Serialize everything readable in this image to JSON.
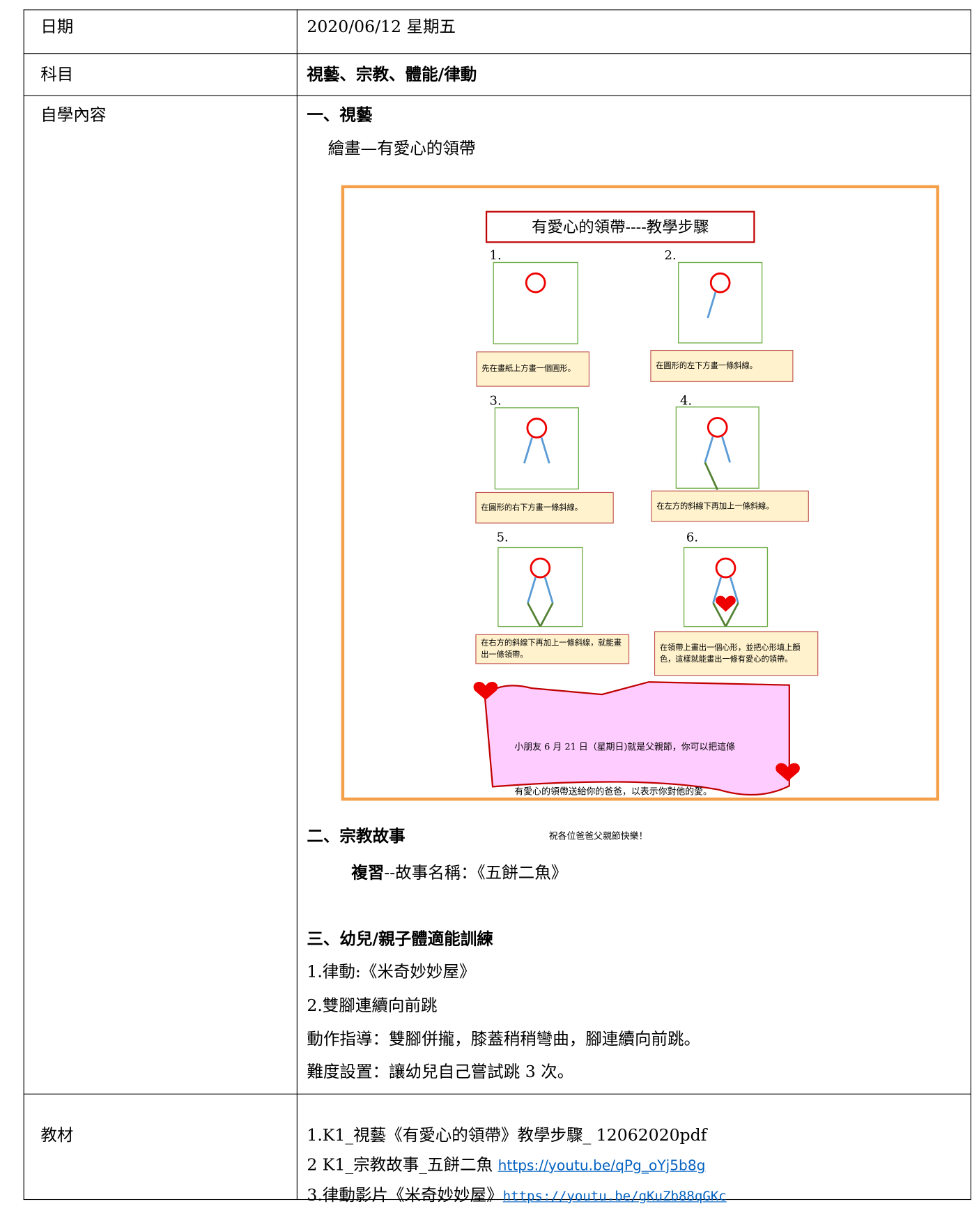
{
  "table": {
    "rows": [
      {
        "label": "日期",
        "content": "2020/06/12 星期五"
      },
      {
        "label": "科目",
        "content": "視藝、宗教、體能/律動"
      },
      {
        "label": "自學內容",
        "sections": [
          {
            "heading": "一、視藝",
            "subtitle": "繪畫—有愛心的領帶",
            "figure": {
              "title": "有愛心的領帶----教學步驟",
              "steps": [
                {
                  "number": "1.",
                  "caption": "先在畫紙上方畫一個圓形。"
                },
                {
                  "number": "2.",
                  "caption": "在圓形的左下方畫一條斜線。"
                },
                {
                  "number": "3.",
                  "caption": "在圓形的右下方畫一條斜線。"
                },
                {
                  "number": "4.",
                  "caption": "在左方的斜線下再加上一條斜線。"
                },
                {
                  "number": "5.",
                  "caption": "在右方的斜線下再加上一條斜線，就能畫出一條領帶。"
                },
                {
                  "number": "6.",
                  "caption": "在領帶上畫出一個心形，並把心形填上顏色，這樣就能畫出一條有愛心的領帶。"
                }
              ],
              "banner": [
                "小朋友 6 月 21 日（星期日)就是父親節，你可以把這條",
                "有愛心的領帶送給你的爸爸，以表示你對他的愛。",
                "祝各位爸爸父親節快樂！"
              ]
            }
          },
          {
            "heading": "二、宗教故事",
            "line": {
              "bold": "複習",
              "text": "--故事名稱：《五餅二魚》"
            }
          },
          {
            "heading": "三、幼兒/親子體適能訓練",
            "lines": [
              "1.律動:《米奇妙妙屋》",
              "2.雙腳連續向前跳",
              "動作指導：雙腳併攏，膝蓋稍稍彎曲，腳連續向前跳。",
              "難度設置：讓幼兒自己嘗試跳 3 次。"
            ]
          }
        ]
      },
      {
        "label": "教材",
        "items": [
          {
            "text": "1.K1_視藝《有愛心的領帶》教學步驟_ 12062020pdf"
          },
          {
            "text": "2 K1_宗教故事_五餅二魚",
            "link": "https://youtu.be/qPg_oYj5b8g"
          },
          {
            "text": "3.律動影片《米奇妙妙屋》",
            "link": "https://youtu.be/gKuZb88qGKc"
          }
        ]
      }
    ]
  }
}
